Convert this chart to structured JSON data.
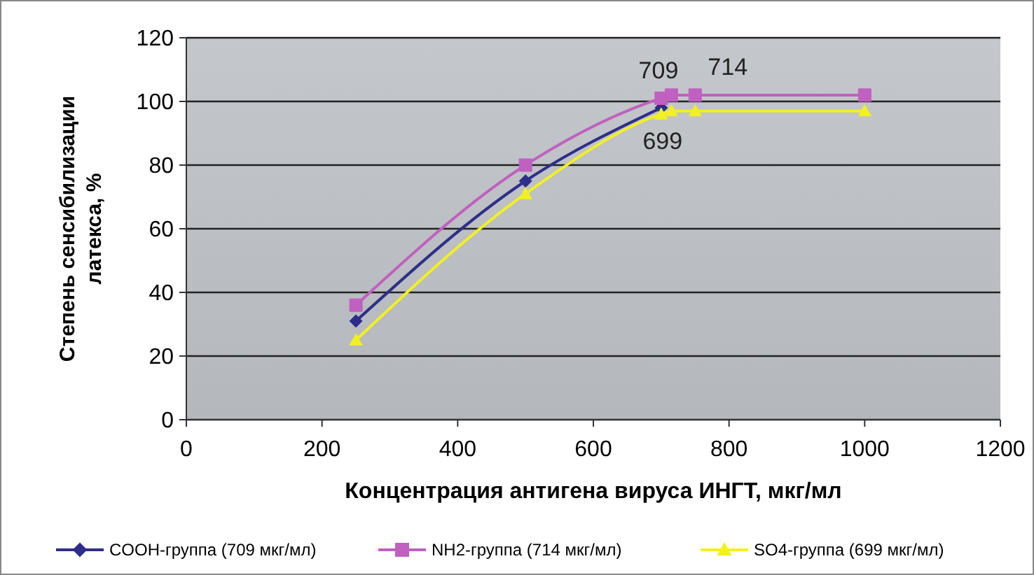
{
  "chart_data": {
    "type": "line",
    "xlabel": "Концентрация антигена вируса ИНГТ, мкг/мл",
    "ylabel": "Степень сенсибилизации латекса, %",
    "x": [
      250,
      500,
      700,
      715,
      750,
      1000
    ],
    "series": [
      {
        "name": "COOH-группа (709 мкг/мл)",
        "color": "#2e2e8a",
        "marker": "diamond",
        "values": [
          31,
          75,
          98,
          null,
          null,
          null
        ]
      },
      {
        "name": "NH2-группа (714 мкг/мл)",
        "color": "#c060c0",
        "marker": "square",
        "values": [
          36,
          80,
          101,
          102,
          102,
          102
        ]
      },
      {
        "name": "SO4-группа (699 мкг/мл)",
        "color": "#f2f020",
        "marker": "triangle",
        "values": [
          25,
          71,
          96,
          97,
          97,
          97
        ]
      }
    ],
    "xlim": [
      0,
      1200
    ],
    "xticks": [
      0,
      200,
      400,
      600,
      800,
      1000,
      1200
    ],
    "ylim": [
      0,
      120
    ],
    "yticks": [
      0,
      20,
      40,
      60,
      80,
      100,
      120
    ],
    "grid": "y",
    "legend": "bottom",
    "line_style": "solid",
    "annotations": [
      "709",
      "714",
      "699"
    ]
  }
}
